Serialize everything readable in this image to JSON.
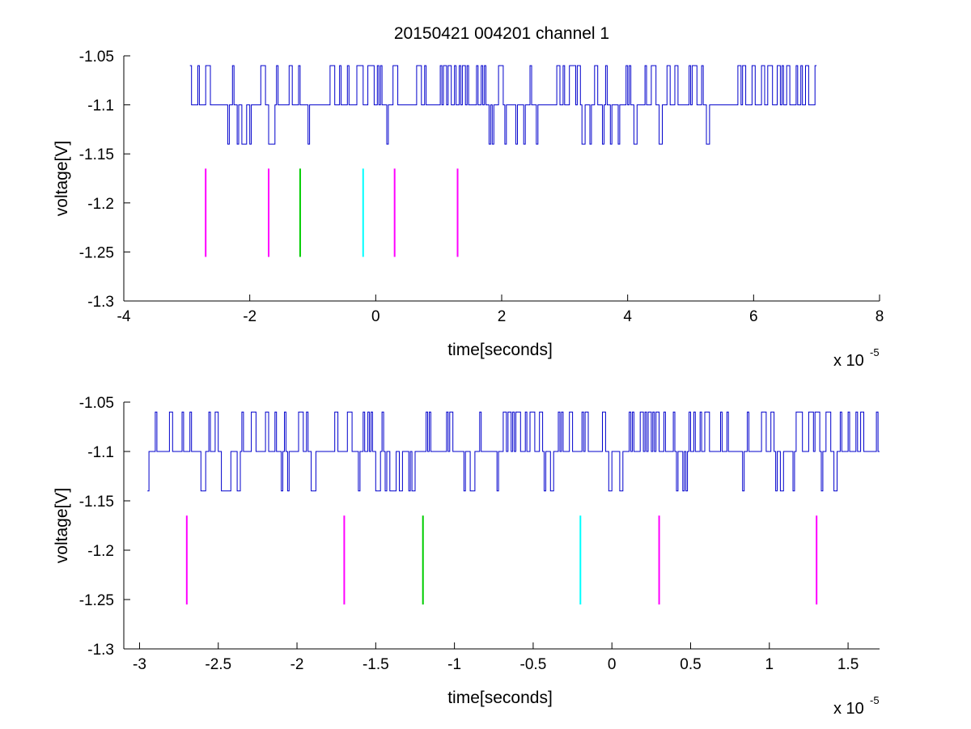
{
  "figure": {
    "title": "20150421 004201 channel 1"
  },
  "chart_data": [
    {
      "type": "line",
      "title": "20150421 004201 channel 1",
      "xlabel": "time[seconds]",
      "ylabel": "voltage[V]",
      "x_multiplier_label": "x 10",
      "x_multiplier_exponent": "-5",
      "xlim": [
        -4,
        8
      ],
      "ylim": [
        -1.3,
        -1.05
      ],
      "xticks": [
        -4,
        -2,
        0,
        2,
        4,
        6,
        8
      ],
      "xtick_labels": [
        "-4",
        "-2",
        "0",
        "2",
        "4",
        "6",
        "8"
      ],
      "yticks": [
        -1.05,
        -1.1,
        -1.15,
        -1.2,
        -1.25,
        -1.3
      ],
      "ytick_labels": [
        "-1.05",
        "-1.1",
        "-1.15",
        "-1.2",
        "-1.25",
        "-1.3"
      ],
      "grid": false,
      "signal": {
        "color": "#0000cc",
        "x_range": [
          -2.95,
          7.0
        ],
        "levels": [
          -1.06,
          -1.1,
          -1.14
        ],
        "baseline": -1.1
      },
      "markers": [
        {
          "x": -2.7,
          "y_range": [
            -1.255,
            -1.165
          ],
          "color": "#ff00ff"
        },
        {
          "x": -1.7,
          "y_range": [
            -1.255,
            -1.165
          ],
          "color": "#ff00ff"
        },
        {
          "x": -1.2,
          "y_range": [
            -1.255,
            -1.165
          ],
          "color": "#00cc00"
        },
        {
          "x": -0.2,
          "y_range": [
            -1.255,
            -1.165
          ],
          "color": "#00ffff"
        },
        {
          "x": 0.3,
          "y_range": [
            -1.255,
            -1.165
          ],
          "color": "#ff00ff"
        },
        {
          "x": 1.3,
          "y_range": [
            -1.255,
            -1.165
          ],
          "color": "#ff00ff"
        }
      ]
    },
    {
      "type": "line",
      "xlabel": "time[seconds]",
      "ylabel": "voltage[V]",
      "x_multiplier_label": "x 10",
      "x_multiplier_exponent": "-5",
      "xlim": [
        -3.1,
        1.7
      ],
      "ylim": [
        -1.3,
        -1.05
      ],
      "xticks": [
        -3,
        -2.5,
        -2,
        -1.5,
        -1,
        -0.5,
        0,
        0.5,
        1,
        1.5
      ],
      "xtick_labels": [
        "-3",
        "-2.5",
        "-2",
        "-1.5",
        "-1",
        "-0.5",
        "0",
        "0.5",
        "1",
        "1.5"
      ],
      "yticks": [
        -1.05,
        -1.1,
        -1.15,
        -1.2,
        -1.25,
        -1.3
      ],
      "ytick_labels": [
        "-1.05",
        "-1.1",
        "-1.15",
        "-1.2",
        "-1.25",
        "-1.3"
      ],
      "grid": false,
      "signal": {
        "color": "#0000cc",
        "x_range": [
          -2.95,
          1.7
        ],
        "levels": [
          -1.06,
          -1.1,
          -1.14
        ],
        "baseline": -1.1
      },
      "markers": [
        {
          "x": -2.7,
          "y_range": [
            -1.255,
            -1.165
          ],
          "color": "#ff00ff"
        },
        {
          "x": -1.7,
          "y_range": [
            -1.255,
            -1.165
          ],
          "color": "#ff00ff"
        },
        {
          "x": -1.2,
          "y_range": [
            -1.255,
            -1.165
          ],
          "color": "#00cc00"
        },
        {
          "x": -0.2,
          "y_range": [
            -1.255,
            -1.165
          ],
          "color": "#00ffff"
        },
        {
          "x": 0.3,
          "y_range": [
            -1.255,
            -1.165
          ],
          "color": "#ff00ff"
        },
        {
          "x": 1.3,
          "y_range": [
            -1.255,
            -1.165
          ],
          "color": "#ff00ff"
        }
      ]
    }
  ]
}
